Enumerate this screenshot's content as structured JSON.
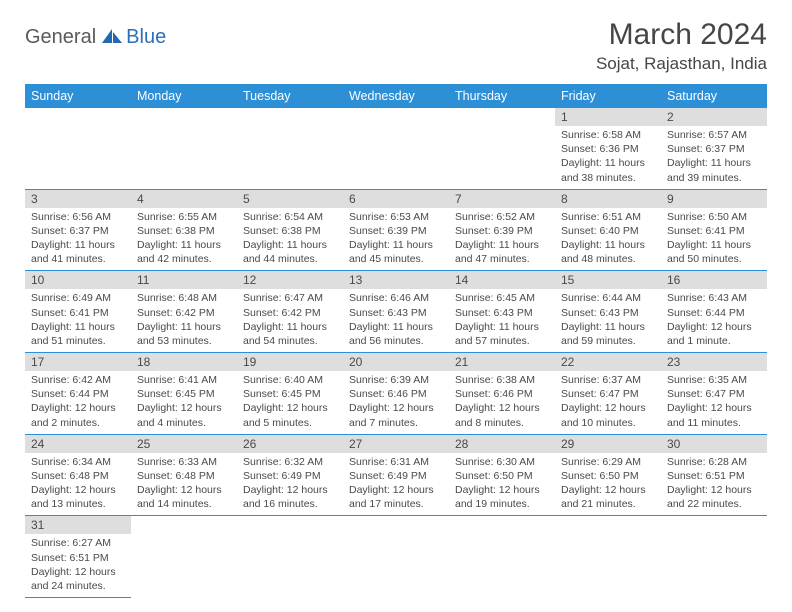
{
  "logo": {
    "text1": "General",
    "text2": "Blue"
  },
  "title": "March 2024",
  "location": "Sojat, Rajasthan, India",
  "colors": {
    "header_bg": "#2d8fd5",
    "header_text": "#ffffff",
    "daynum_bg": "#dedede",
    "border": "#2d8fd5",
    "body_text": "#4a4a4a",
    "logo_gray": "#5a5a5a",
    "logo_blue": "#2d6fb8"
  },
  "day_labels": [
    "Sunday",
    "Monday",
    "Tuesday",
    "Wednesday",
    "Thursday",
    "Friday",
    "Saturday"
  ],
  "weeks": [
    [
      null,
      null,
      null,
      null,
      null,
      {
        "n": "1",
        "sr": "6:58 AM",
        "ss": "6:36 PM",
        "dl": "11 hours and 38 minutes."
      },
      {
        "n": "2",
        "sr": "6:57 AM",
        "ss": "6:37 PM",
        "dl": "11 hours and 39 minutes."
      }
    ],
    [
      {
        "n": "3",
        "sr": "6:56 AM",
        "ss": "6:37 PM",
        "dl": "11 hours and 41 minutes."
      },
      {
        "n": "4",
        "sr": "6:55 AM",
        "ss": "6:38 PM",
        "dl": "11 hours and 42 minutes."
      },
      {
        "n": "5",
        "sr": "6:54 AM",
        "ss": "6:38 PM",
        "dl": "11 hours and 44 minutes."
      },
      {
        "n": "6",
        "sr": "6:53 AM",
        "ss": "6:39 PM",
        "dl": "11 hours and 45 minutes."
      },
      {
        "n": "7",
        "sr": "6:52 AM",
        "ss": "6:39 PM",
        "dl": "11 hours and 47 minutes."
      },
      {
        "n": "8",
        "sr": "6:51 AM",
        "ss": "6:40 PM",
        "dl": "11 hours and 48 minutes."
      },
      {
        "n": "9",
        "sr": "6:50 AM",
        "ss": "6:41 PM",
        "dl": "11 hours and 50 minutes."
      }
    ],
    [
      {
        "n": "10",
        "sr": "6:49 AM",
        "ss": "6:41 PM",
        "dl": "11 hours and 51 minutes."
      },
      {
        "n": "11",
        "sr": "6:48 AM",
        "ss": "6:42 PM",
        "dl": "11 hours and 53 minutes."
      },
      {
        "n": "12",
        "sr": "6:47 AM",
        "ss": "6:42 PM",
        "dl": "11 hours and 54 minutes."
      },
      {
        "n": "13",
        "sr": "6:46 AM",
        "ss": "6:43 PM",
        "dl": "11 hours and 56 minutes."
      },
      {
        "n": "14",
        "sr": "6:45 AM",
        "ss": "6:43 PM",
        "dl": "11 hours and 57 minutes."
      },
      {
        "n": "15",
        "sr": "6:44 AM",
        "ss": "6:43 PM",
        "dl": "11 hours and 59 minutes."
      },
      {
        "n": "16",
        "sr": "6:43 AM",
        "ss": "6:44 PM",
        "dl": "12 hours and 1 minute."
      }
    ],
    [
      {
        "n": "17",
        "sr": "6:42 AM",
        "ss": "6:44 PM",
        "dl": "12 hours and 2 minutes."
      },
      {
        "n": "18",
        "sr": "6:41 AM",
        "ss": "6:45 PM",
        "dl": "12 hours and 4 minutes."
      },
      {
        "n": "19",
        "sr": "6:40 AM",
        "ss": "6:45 PM",
        "dl": "12 hours and 5 minutes."
      },
      {
        "n": "20",
        "sr": "6:39 AM",
        "ss": "6:46 PM",
        "dl": "12 hours and 7 minutes."
      },
      {
        "n": "21",
        "sr": "6:38 AM",
        "ss": "6:46 PM",
        "dl": "12 hours and 8 minutes."
      },
      {
        "n": "22",
        "sr": "6:37 AM",
        "ss": "6:47 PM",
        "dl": "12 hours and 10 minutes."
      },
      {
        "n": "23",
        "sr": "6:35 AM",
        "ss": "6:47 PM",
        "dl": "12 hours and 11 minutes."
      }
    ],
    [
      {
        "n": "24",
        "sr": "6:34 AM",
        "ss": "6:48 PM",
        "dl": "12 hours and 13 minutes."
      },
      {
        "n": "25",
        "sr": "6:33 AM",
        "ss": "6:48 PM",
        "dl": "12 hours and 14 minutes."
      },
      {
        "n": "26",
        "sr": "6:32 AM",
        "ss": "6:49 PM",
        "dl": "12 hours and 16 minutes."
      },
      {
        "n": "27",
        "sr": "6:31 AM",
        "ss": "6:49 PM",
        "dl": "12 hours and 17 minutes."
      },
      {
        "n": "28",
        "sr": "6:30 AM",
        "ss": "6:50 PM",
        "dl": "12 hours and 19 minutes."
      },
      {
        "n": "29",
        "sr": "6:29 AM",
        "ss": "6:50 PM",
        "dl": "12 hours and 21 minutes."
      },
      {
        "n": "30",
        "sr": "6:28 AM",
        "ss": "6:51 PM",
        "dl": "12 hours and 22 minutes."
      }
    ],
    [
      {
        "n": "31",
        "sr": "6:27 AM",
        "ss": "6:51 PM",
        "dl": "12 hours and 24 minutes."
      },
      null,
      null,
      null,
      null,
      null,
      null
    ]
  ],
  "labels": {
    "sunrise": "Sunrise:",
    "sunset": "Sunset:",
    "daylight": "Daylight:"
  }
}
